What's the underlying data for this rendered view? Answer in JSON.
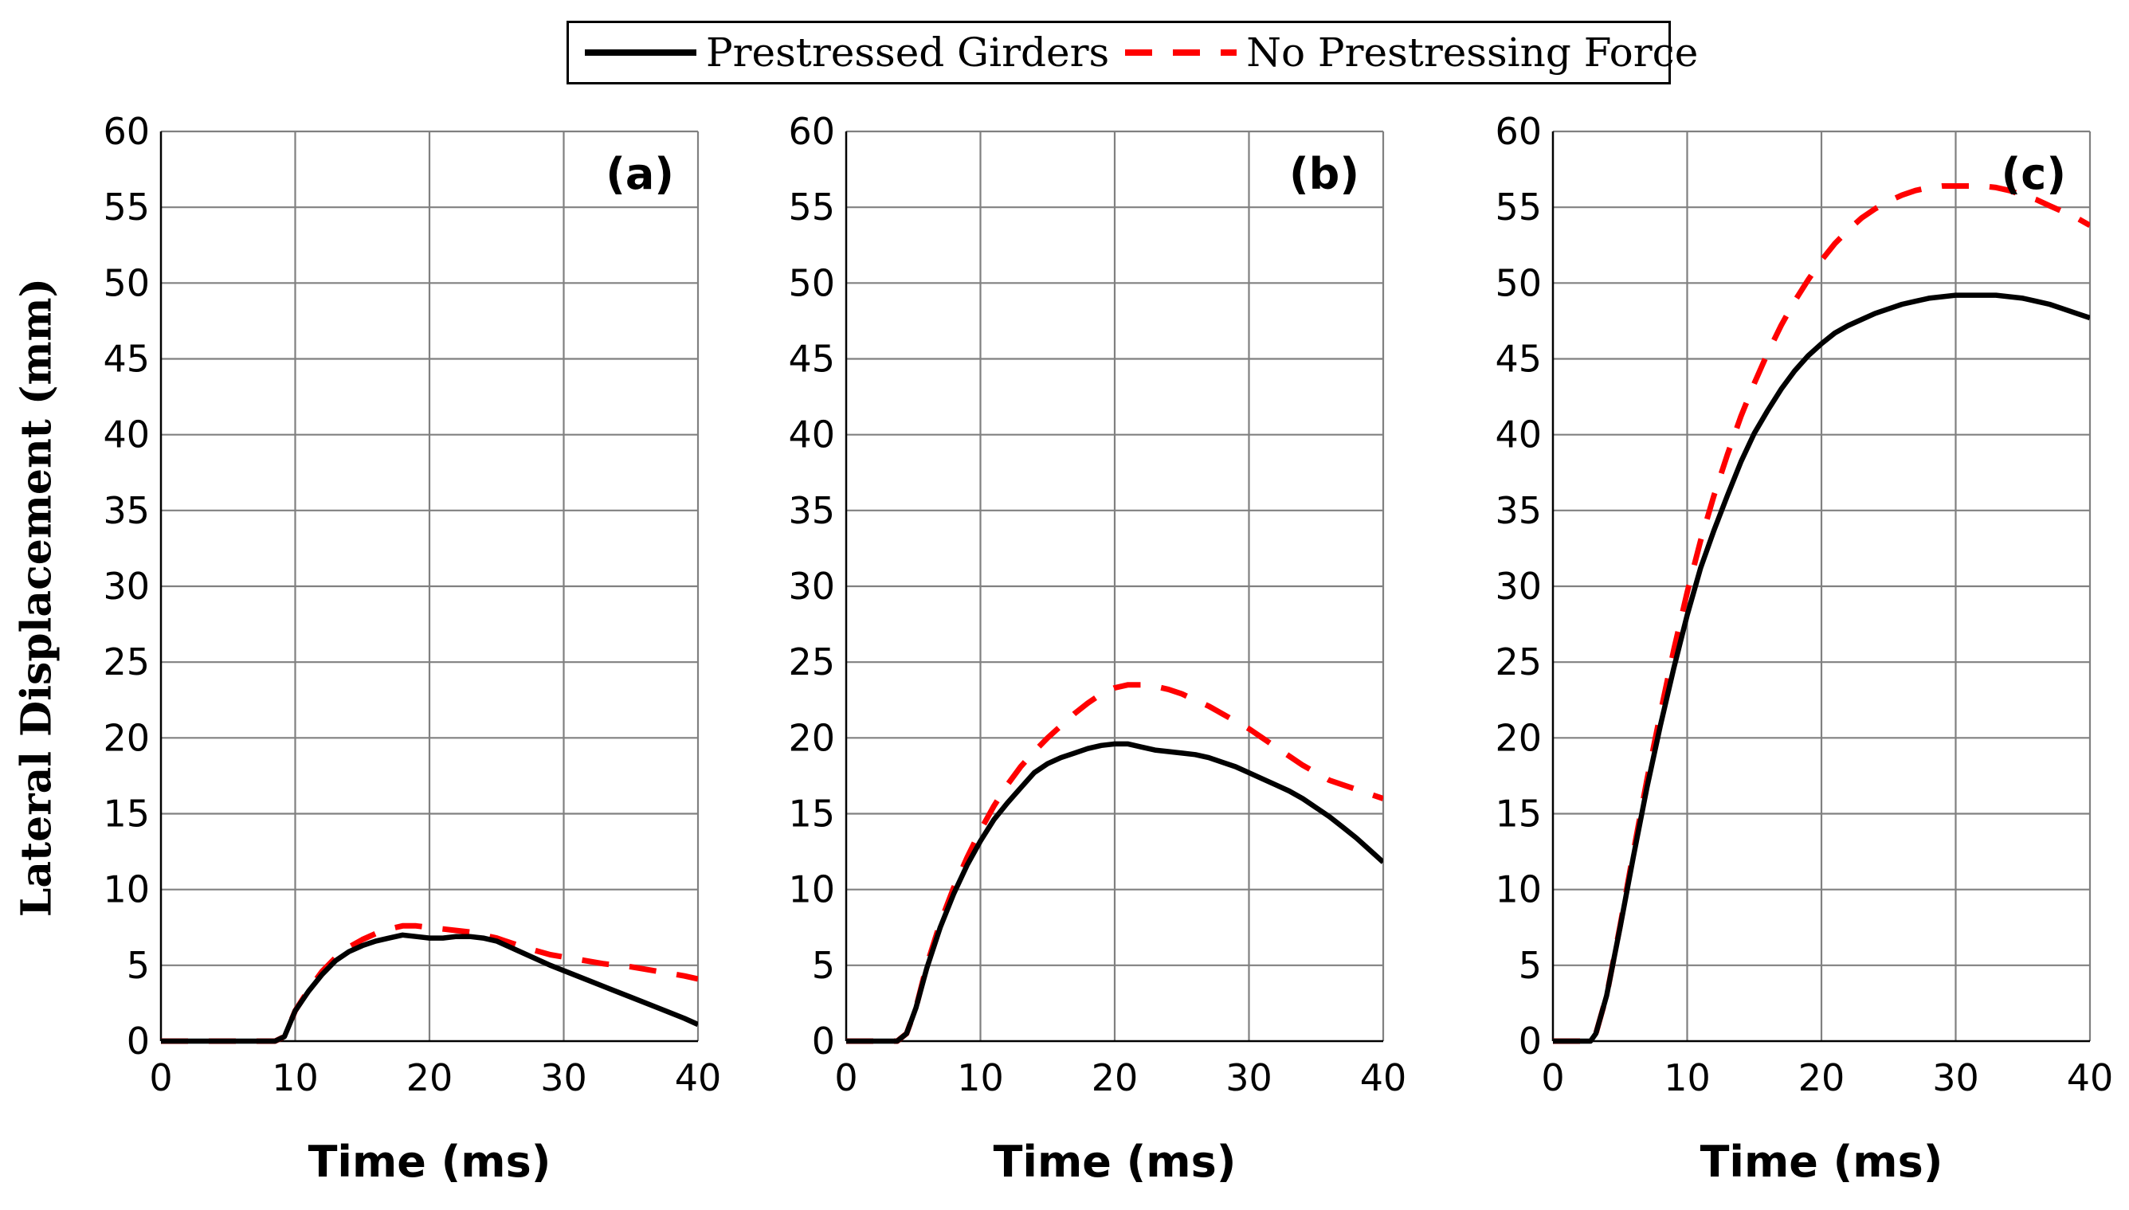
{
  "legend": {
    "solid_label": "Prestressed Girders",
    "dashed_label": "No Prestressing Force"
  },
  "colors": {
    "solid": "#000000",
    "dashed": "#ff0000",
    "grid": "#808080",
    "axis": "#000000"
  },
  "ylabel": "Lateral Displacement (mm)",
  "chart_data": [
    {
      "type": "line",
      "title": "(a)",
      "xlabel": "Time (ms)",
      "ylabel": "Lateral Displacement (mm)",
      "xlim": [
        0,
        40
      ],
      "ylim": [
        0,
        60
      ],
      "xticks": [
        0,
        10,
        20,
        30,
        40
      ],
      "yticks": [
        0,
        5,
        10,
        15,
        20,
        25,
        30,
        35,
        40,
        45,
        50,
        55,
        60
      ],
      "grid": true,
      "series": [
        {
          "name": "Prestressed Girders",
          "style": "solid",
          "x": [
            0,
            8.5,
            9.2,
            10,
            11,
            12,
            13,
            14,
            15,
            16,
            17,
            18,
            19,
            20,
            21,
            22,
            23,
            24,
            25,
            27,
            29,
            31,
            33,
            35,
            37,
            39,
            40
          ],
          "y": [
            0,
            0,
            0.3,
            2.0,
            3.3,
            4.4,
            5.3,
            5.9,
            6.3,
            6.6,
            6.8,
            7.0,
            6.9,
            6.8,
            6.8,
            6.9,
            6.9,
            6.8,
            6.6,
            5.8,
            5.0,
            4.3,
            3.6,
            2.9,
            2.2,
            1.5,
            1.1
          ]
        },
        {
          "name": "No Prestressing Force",
          "style": "dashed",
          "x": [
            0,
            8.5,
            9.2,
            10,
            11,
            12,
            13,
            14,
            15,
            16,
            17,
            18,
            19,
            20,
            21,
            22,
            23,
            24,
            25,
            27,
            29,
            31,
            33,
            35,
            37,
            39,
            40
          ],
          "y": [
            0,
            0,
            0.3,
            2.0,
            3.4,
            4.6,
            5.5,
            6.2,
            6.7,
            7.1,
            7.4,
            7.6,
            7.6,
            7.5,
            7.4,
            7.3,
            7.2,
            7.0,
            6.8,
            6.2,
            5.7,
            5.4,
            5.1,
            4.9,
            4.6,
            4.3,
            4.1
          ]
        }
      ]
    },
    {
      "type": "line",
      "title": "(b)",
      "xlabel": "Time (ms)",
      "ylabel": "",
      "xlim": [
        0,
        40
      ],
      "ylim": [
        0,
        60
      ],
      "xticks": [
        0,
        10,
        20,
        30,
        40
      ],
      "yticks": [
        0,
        5,
        10,
        15,
        20,
        25,
        30,
        35,
        40,
        45,
        50,
        55,
        60
      ],
      "grid": true,
      "series": [
        {
          "name": "Prestressed Girders",
          "style": "solid",
          "x": [
            0,
            3.8,
            4.5,
            5.2,
            6.0,
            7.0,
            8.0,
            9.0,
            10,
            11,
            12,
            13,
            14,
            15,
            16,
            17,
            18,
            19,
            20,
            21,
            22,
            23,
            24,
            25,
            26,
            27,
            28,
            29,
            30,
            31,
            32,
            33,
            34,
            35,
            36,
            37,
            38,
            39,
            40
          ],
          "y": [
            0,
            0,
            0.5,
            2.2,
            4.8,
            7.5,
            9.7,
            11.6,
            13.2,
            14.6,
            15.7,
            16.7,
            17.7,
            18.3,
            18.7,
            19.0,
            19.3,
            19.5,
            19.6,
            19.6,
            19.4,
            19.2,
            19.1,
            19.0,
            18.9,
            18.7,
            18.4,
            18.1,
            17.7,
            17.3,
            16.9,
            16.5,
            16.0,
            15.4,
            14.8,
            14.1,
            13.4,
            12.6,
            11.8
          ]
        },
        {
          "name": "No Prestressing Force",
          "style": "dashed",
          "x": [
            0,
            3.8,
            4.5,
            5.2,
            6.0,
            7.0,
            8.0,
            9.0,
            10,
            11,
            12,
            13,
            14,
            15,
            16,
            17,
            18,
            19,
            20,
            21,
            22,
            23,
            24,
            25,
            26,
            27,
            28,
            29,
            30,
            31,
            32,
            33,
            34,
            35,
            36,
            37,
            38,
            39,
            40
          ],
          "y": [
            0,
            0,
            0.5,
            2.2,
            5.0,
            7.8,
            10.1,
            12.1,
            13.9,
            15.5,
            16.9,
            18.1,
            19.1,
            20.0,
            20.8,
            21.6,
            22.3,
            22.9,
            23.3,
            23.5,
            23.5,
            23.4,
            23.2,
            22.9,
            22.5,
            22.1,
            21.6,
            21.1,
            20.6,
            20.0,
            19.4,
            18.8,
            18.2,
            17.7,
            17.2,
            16.9,
            16.6,
            16.3,
            16.0
          ]
        }
      ]
    },
    {
      "type": "line",
      "title": "(c)",
      "xlabel": "Time (ms)",
      "ylabel": "",
      "xlim": [
        0,
        40
      ],
      "ylim": [
        0,
        60
      ],
      "xticks": [
        0,
        10,
        20,
        30,
        40
      ],
      "yticks": [
        0,
        5,
        10,
        15,
        20,
        25,
        30,
        35,
        40,
        45,
        50,
        55,
        60
      ],
      "grid": true,
      "series": [
        {
          "name": "Prestressed Girders",
          "style": "solid",
          "x": [
            0,
            2.8,
            3.2,
            4,
            5,
            6,
            7,
            8,
            9,
            10,
            11,
            12,
            13,
            14,
            15,
            16,
            17,
            18,
            19,
            20,
            21,
            22,
            23,
            24,
            25,
            26,
            27,
            28,
            29,
            30,
            31,
            32,
            33,
            34,
            35,
            36,
            37,
            38,
            39,
            40
          ],
          "y": [
            0,
            0,
            0.5,
            3.0,
            7.5,
            12.2,
            16.7,
            20.8,
            24.6,
            28.1,
            31.2,
            33.7,
            36.0,
            38.2,
            40.1,
            41.6,
            43.0,
            44.2,
            45.2,
            46.0,
            46.7,
            47.2,
            47.6,
            48.0,
            48.3,
            48.6,
            48.8,
            49.0,
            49.1,
            49.2,
            49.2,
            49.2,
            49.2,
            49.1,
            49.0,
            48.8,
            48.6,
            48.3,
            48.0,
            47.7
          ]
        },
        {
          "name": "No Prestressing Force",
          "style": "dashed",
          "x": [
            0,
            2.8,
            3.2,
            4,
            5,
            6,
            7,
            8,
            9,
            10,
            11,
            12,
            13,
            14,
            15,
            16,
            17,
            18,
            19,
            20,
            21,
            22,
            23,
            24,
            25,
            26,
            27,
            28,
            29,
            30,
            31,
            32,
            33,
            34,
            35,
            36,
            37,
            38,
            39,
            40
          ],
          "y": [
            0,
            0,
            0.5,
            3.0,
            7.6,
            12.5,
            17.2,
            21.6,
            25.8,
            29.6,
            33.0,
            36.0,
            38.7,
            41.2,
            43.4,
            45.4,
            47.2,
            48.8,
            50.2,
            51.5,
            52.6,
            53.5,
            54.3,
            54.9,
            55.4,
            55.8,
            56.1,
            56.3,
            56.4,
            56.4,
            56.4,
            56.4,
            56.3,
            56.1,
            55.8,
            55.5,
            55.1,
            54.7,
            54.3,
            53.8
          ]
        }
      ]
    }
  ]
}
